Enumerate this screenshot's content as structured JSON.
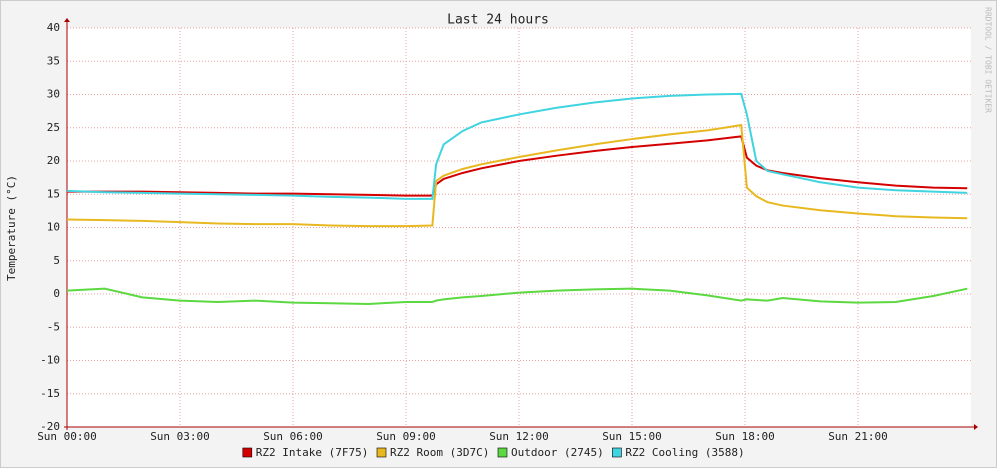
{
  "chart_data": {
    "type": "line",
    "title": "Last 24 hours",
    "y_label": "Temperature (°C)",
    "watermark": "RRDTOOL / TOBI OETIKER",
    "x": [
      0,
      1,
      2,
      3,
      4,
      5,
      6,
      7,
      8,
      9,
      9.7,
      9.8,
      10,
      10.5,
      11,
      12,
      13,
      14,
      15,
      16,
      17,
      17.9,
      18.05,
      18.3,
      18.6,
      19,
      20,
      21,
      22,
      23,
      23.9
    ],
    "xlim": [
      0,
      24
    ],
    "xticks": [
      {
        "value": 0,
        "label": "Sun 00:00"
      },
      {
        "value": 3,
        "label": "Sun 03:00"
      },
      {
        "value": 6,
        "label": "Sun 06:00"
      },
      {
        "value": 9,
        "label": "Sun 09:00"
      },
      {
        "value": 12,
        "label": "Sun 12:00"
      },
      {
        "value": 15,
        "label": "Sun 15:00"
      },
      {
        "value": 18,
        "label": "Sun 18:00"
      },
      {
        "value": 21,
        "label": "Sun 21:00"
      }
    ],
    "ylim": [
      -20,
      40
    ],
    "yticks": [
      -20,
      -15,
      -10,
      -5,
      0,
      5,
      10,
      15,
      20,
      25,
      30,
      35,
      40
    ],
    "grid": true,
    "series": [
      {
        "name": "RZ2 Intake (7F75)",
        "color": "#d40000",
        "values": [
          15.4,
          15.4,
          15.4,
          15.3,
          15.2,
          15.1,
          15.1,
          15,
          14.9,
          14.8,
          14.8,
          16.5,
          17.3,
          18.2,
          18.9,
          20,
          20.8,
          21.5,
          22.1,
          22.6,
          23.1,
          23.7,
          20.5,
          19.3,
          18.6,
          18.2,
          17.4,
          16.8,
          16.3,
          16,
          15.9
        ]
      },
      {
        "name": "RZ2 Room (3D7C)",
        "color": "#e8b820",
        "values": [
          11.2,
          11.1,
          11,
          10.8,
          10.6,
          10.5,
          10.5,
          10.3,
          10.2,
          10.2,
          10.3,
          17,
          17.8,
          18.8,
          19.5,
          20.6,
          21.6,
          22.5,
          23.3,
          24,
          24.6,
          25.4,
          16,
          14.7,
          13.8,
          13.3,
          12.6,
          12.1,
          11.7,
          11.5,
          11.4
        ]
      },
      {
        "name": "Outdoor (2745)",
        "color": "#5cd840",
        "values": [
          0.5,
          0.8,
          -0.5,
          -1,
          -1.2,
          -1,
          -1.3,
          -1.4,
          -1.5,
          -1.2,
          -1.2,
          -1,
          -0.8,
          -0.5,
          -0.3,
          0.2,
          0.5,
          0.7,
          0.8,
          0.5,
          -0.2,
          -1,
          -0.8,
          -0.9,
          -1,
          -0.6,
          -1.1,
          -1.3,
          -1.2,
          -0.3,
          0.8
        ]
      },
      {
        "name": "RZ2 Cooling (3588)",
        "color": "#40d4e0",
        "values": [
          15.5,
          15.3,
          15.2,
          15.1,
          15,
          14.9,
          14.8,
          14.6,
          14.5,
          14.3,
          14.3,
          19.5,
          22.5,
          24.5,
          25.8,
          27,
          28,
          28.8,
          29.4,
          29.8,
          30,
          30.1,
          27,
          20,
          18.5,
          18,
          16.8,
          16,
          15.6,
          15.4,
          15.2
        ]
      }
    ]
  }
}
